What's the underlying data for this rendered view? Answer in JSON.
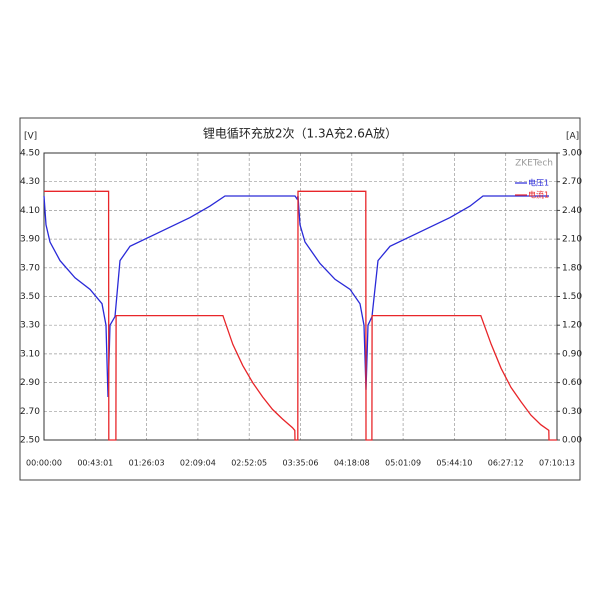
{
  "chart_data": {
    "type": "line",
    "title": "锂电循环充放2次（1.3A充2.6A放）",
    "y_label": "[V]",
    "y2_label": "[A]",
    "watermark": "ZKETech",
    "xlim": [
      0,
      25813
    ],
    "xticks": [
      {
        "value": 0,
        "label": "00:00:00"
      },
      {
        "value": 2581,
        "label": "00:43:01"
      },
      {
        "value": 5163,
        "label": "01:26:03"
      },
      {
        "value": 7744,
        "label": "02:09:04"
      },
      {
        "value": 10325,
        "label": "02:52:05"
      },
      {
        "value": 12906,
        "label": "03:35:06"
      },
      {
        "value": 15488,
        "label": "04:18:08"
      },
      {
        "value": 18069,
        "label": "05:01:09"
      },
      {
        "value": 20650,
        "label": "05:44:10"
      },
      {
        "value": 23232,
        "label": "06:27:12"
      },
      {
        "value": 25813,
        "label": "07:10:13"
      }
    ],
    "ylim": [
      2.5,
      4.5
    ],
    "yticks": [
      {
        "value": 2.5,
        "label": "2.50"
      },
      {
        "value": 2.7,
        "label": "2.70"
      },
      {
        "value": 2.9,
        "label": "2.90"
      },
      {
        "value": 3.1,
        "label": "3.10"
      },
      {
        "value": 3.3,
        "label": "3.30"
      },
      {
        "value": 3.5,
        "label": "3.50"
      },
      {
        "value": 3.7,
        "label": "3.70"
      },
      {
        "value": 3.9,
        "label": "3.90"
      },
      {
        "value": 4.1,
        "label": "4.10"
      },
      {
        "value": 4.3,
        "label": "4.30"
      },
      {
        "value": 4.5,
        "label": "4.50"
      }
    ],
    "y2lim": [
      0,
      3
    ],
    "y2ticks": [
      {
        "value": 0,
        "label": "0.00"
      },
      {
        "value": 0.3,
        "label": "0.30"
      },
      {
        "value": 0.6,
        "label": "0.60"
      },
      {
        "value": 0.9,
        "label": "0.90"
      },
      {
        "value": 1.2,
        "label": "1.20"
      },
      {
        "value": 1.5,
        "label": "1.50"
      },
      {
        "value": 1.8,
        "label": "1.80"
      },
      {
        "value": 2.1,
        "label": "2.10"
      },
      {
        "value": 2.4,
        "label": "2.40"
      },
      {
        "value": 2.7,
        "label": "2.70"
      },
      {
        "value": 3,
        "label": "3.00"
      }
    ],
    "grid": true,
    "legend": "top-right",
    "series": [
      {
        "name": "电压1",
        "color": "#2a2ad8",
        "x": [
          0,
          100,
          302,
          805,
          1560,
          2315,
          2919,
          3120,
          3220,
          3321,
          3573,
          3824,
          4328,
          5837,
          7347,
          8353,
          9108,
          12630,
          12730,
          12781,
          12882,
          13134,
          13889,
          14643,
          15398,
          15901,
          16100,
          16203,
          16304,
          16505,
          16807,
          17411,
          18920,
          20430,
          21436,
          22090,
          25412
        ],
        "values": [
          4.2,
          4.0,
          3.88,
          3.75,
          3.63,
          3.55,
          3.45,
          3.3,
          2.8,
          3.3,
          3.36,
          3.75,
          3.85,
          3.95,
          4.05,
          4.13,
          4.2,
          4.2,
          4.18,
          4.2,
          4.0,
          3.88,
          3.73,
          3.62,
          3.55,
          3.45,
          3.3,
          2.85,
          3.3,
          3.36,
          3.75,
          3.85,
          3.95,
          4.05,
          4.13,
          4.2,
          4.2
        ]
      },
      {
        "name": "电流1",
        "color": "#e8262a",
        "axis": "y2",
        "x": [
          0,
          3250,
          3260,
          3620,
          3630,
          9000,
          9500,
          10000,
          10500,
          11000,
          11500,
          12000,
          12500,
          12620,
          12630,
          12770,
          12780,
          16190,
          16200,
          16500,
          16510,
          21980,
          22500,
          23000,
          23500,
          24000,
          24500,
          25000,
          25400,
          25410,
          25813
        ],
        "values": [
          2.6,
          2.6,
          0,
          0,
          1.3,
          1.3,
          1.0,
          0.78,
          0.6,
          0.45,
          0.32,
          0.22,
          0.13,
          0.1,
          0,
          0,
          2.6,
          2.6,
          0,
          0,
          1.3,
          1.3,
          1.0,
          0.75,
          0.55,
          0.4,
          0.26,
          0.16,
          0.1,
          0,
          0
        ]
      }
    ]
  }
}
